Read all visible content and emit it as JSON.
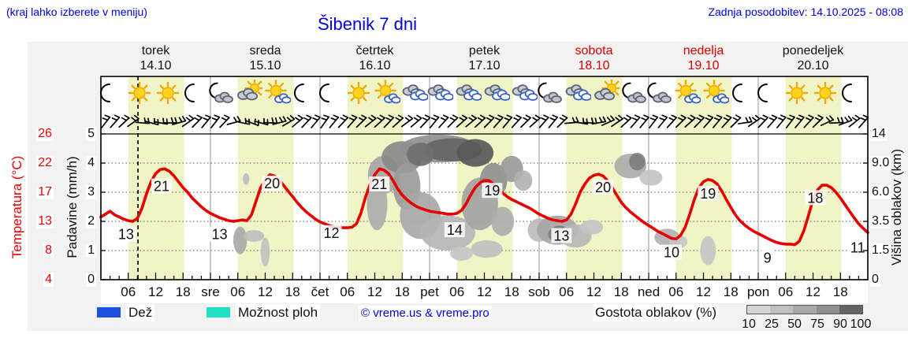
{
  "header": {
    "hint": "(kraj lahko izberete v meniju)",
    "updated": "Zadnja posodobitev: 14.10.2025 - 08:08",
    "title": "Šibenik 7 dni"
  },
  "colors": {
    "accent_blue": "#0000dd",
    "curve_red": "#e60000",
    "weekend_red": "#dd0000",
    "day_band_yellow": "#f0f4c6",
    "rain": "#1a51e0",
    "showers": "#20dfc5",
    "panel_gray": "#f2f2f2",
    "density_scale": [
      "#d6d6d6",
      "#c0c0c0",
      "#a9a9a9",
      "#8f8f8f",
      "#636363"
    ]
  },
  "days": [
    {
      "name": "torek",
      "date": "14.10",
      "color": "#111111",
      "icons": [
        "moon",
        "sun",
        "sun",
        "moon"
      ]
    },
    {
      "name": "sreda",
      "date": "15.10",
      "color": "#111111",
      "icons": [
        "moon-cloud",
        "cloud-sun",
        "sun-cloud",
        "moon"
      ]
    },
    {
      "name": "četrtek",
      "date": "16.10",
      "color": "#111111",
      "icons": [
        "moon",
        "sun",
        "sun-cloud",
        "cloud"
      ]
    },
    {
      "name": "petek",
      "date": "17.10",
      "color": "#111111",
      "icons": [
        "cloud",
        "cloud",
        "cloud",
        "cloud"
      ]
    },
    {
      "name": "sobota",
      "date": "18.10",
      "color": "#dd0000",
      "icons": [
        "moon-cloud",
        "cloud",
        "cloud-sun",
        "moon-cloud"
      ]
    },
    {
      "name": "nedelja",
      "date": "19.10",
      "color": "#dd0000",
      "icons": [
        "moon-cloud",
        "sun-cloud",
        "sun-cloud",
        "moon"
      ]
    },
    {
      "name": "ponedeljek",
      "date": "20.10",
      "color": "#111111",
      "icons": [
        "moon",
        "sun",
        "sun",
        "moon"
      ]
    }
  ],
  "axes": {
    "temp_label": "Temperatura (°C)",
    "temp_ticks": [
      "26",
      "22",
      "17",
      "13",
      "8",
      "4"
    ],
    "precip_label": "Padavine (mm/h)",
    "precip_ticks": [
      "5",
      "4",
      "3",
      "2",
      "1",
      "0"
    ],
    "cloud_label": "Višina oblakov (km)",
    "cloud_ticks": [
      "14",
      "9.0",
      "6.0",
      "3.5",
      "1.5",
      "0"
    ],
    "time_ticks": [
      "06",
      "12",
      "18"
    ],
    "day_abbr": [
      "sre",
      "čet",
      "pet",
      "sob",
      "ned",
      "pon"
    ]
  },
  "legend": {
    "rain": "Dež",
    "showers": "Možnost ploh",
    "credit": "© vreme.us & vreme.pro",
    "cloud_density": "Gostota oblakov (%)",
    "density_ticks": [
      "10",
      "25",
      "50",
      "75",
      "90",
      "100"
    ]
  },
  "chart_data": {
    "type": "line",
    "title": "Šibenik 7 dni",
    "x_axis": "hours from 14.10 00:00, total 168 h (7 days), ticks every 2 h, labels 06/12/18",
    "temp_axis_map": [
      [
        4,
        0
      ],
      [
        8,
        1
      ],
      [
        13,
        2
      ],
      [
        17,
        3
      ],
      [
        22,
        4
      ],
      [
        26,
        5
      ]
    ],
    "precip_axis_mmh": [
      0,
      1,
      2,
      3,
      4,
      5
    ],
    "cloud_height_axis_km": [
      0,
      1.5,
      3.5,
      6.0,
      9.0,
      14
    ],
    "now_hour": 8.13,
    "daylight_band_hours": [
      6.0,
      18.2
    ],
    "series": [
      {
        "name": "Temperatura (°C)",
        "color": "#e60000",
        "points": [
          [
            0,
            13.6
          ],
          [
            1,
            14.0
          ],
          [
            2,
            14.4
          ],
          [
            3,
            13.9
          ],
          [
            4,
            13.6
          ],
          [
            5,
            13.3
          ],
          [
            6,
            13.1
          ],
          [
            7,
            13.0
          ],
          [
            8,
            13.4
          ],
          [
            9,
            14.8
          ],
          [
            10,
            16.8
          ],
          [
            11,
            18.8
          ],
          [
            12,
            20.2
          ],
          [
            13,
            20.9
          ],
          [
            14,
            21.0
          ],
          [
            15,
            20.6
          ],
          [
            16,
            19.8
          ],
          [
            17,
            18.8
          ],
          [
            18,
            17.8
          ],
          [
            19,
            17.0
          ],
          [
            20,
            16.2
          ],
          [
            21,
            15.6
          ],
          [
            22,
            15.0
          ],
          [
            23,
            14.5
          ],
          [
            24,
            14.1
          ],
          [
            25,
            13.8
          ],
          [
            26,
            13.5
          ],
          [
            27,
            13.3
          ],
          [
            28,
            13.1
          ],
          [
            29,
            13.0
          ],
          [
            30,
            13.1
          ],
          [
            31,
            13.2
          ],
          [
            32,
            13.1
          ],
          [
            33,
            13.9
          ],
          [
            34,
            15.8
          ],
          [
            35,
            17.8
          ],
          [
            36,
            19.2
          ],
          [
            37,
            20.0
          ],
          [
            38,
            19.8
          ],
          [
            39,
            19.2
          ],
          [
            40,
            18.2
          ],
          [
            41,
            17.2
          ],
          [
            42,
            16.4
          ],
          [
            43,
            15.6
          ],
          [
            44,
            14.9
          ],
          [
            45,
            14.3
          ],
          [
            46,
            13.8
          ],
          [
            47,
            13.3
          ],
          [
            48,
            12.9
          ],
          [
            49,
            12.6
          ],
          [
            50,
            12.3
          ],
          [
            51,
            12.1
          ],
          [
            52,
            12.0
          ],
          [
            53,
            11.9
          ],
          [
            54,
            11.9
          ],
          [
            55,
            12.0
          ],
          [
            56,
            12.6
          ],
          [
            57,
            14.2
          ],
          [
            58,
            16.4
          ],
          [
            59,
            18.4
          ],
          [
            60,
            20.0
          ],
          [
            61,
            21.0
          ],
          [
            62,
            20.8
          ],
          [
            63,
            20.2
          ],
          [
            64,
            19.0
          ],
          [
            65,
            17.6
          ],
          [
            66,
            16.6
          ],
          [
            67,
            16.0
          ],
          [
            68,
            15.5
          ],
          [
            69,
            15.1
          ],
          [
            70,
            14.8
          ],
          [
            71,
            14.6
          ],
          [
            72,
            14.4
          ],
          [
            73,
            14.3
          ],
          [
            74,
            14.2
          ],
          [
            75,
            14.1
          ],
          [
            76,
            14.0
          ],
          [
            77,
            14.0
          ],
          [
            78,
            14.1
          ],
          [
            79,
            14.5
          ],
          [
            80,
            15.4
          ],
          [
            81,
            16.6
          ],
          [
            82,
            17.8
          ],
          [
            83,
            18.6
          ],
          [
            84,
            19.0
          ],
          [
            85,
            19.0
          ],
          [
            86,
            18.4
          ],
          [
            87,
            17.6
          ],
          [
            88,
            16.9
          ],
          [
            89,
            16.4
          ],
          [
            90,
            16.0
          ],
          [
            91,
            15.7
          ],
          [
            92,
            15.4
          ],
          [
            93,
            15.1
          ],
          [
            94,
            14.8
          ],
          [
            95,
            14.4
          ],
          [
            96,
            14.0
          ],
          [
            97,
            13.7
          ],
          [
            98,
            13.4
          ],
          [
            99,
            13.2
          ],
          [
            100,
            13.1
          ],
          [
            101,
            13.0
          ],
          [
            102,
            13.2
          ],
          [
            103,
            14.0
          ],
          [
            104,
            15.4
          ],
          [
            105,
            17.0
          ],
          [
            106,
            18.4
          ],
          [
            107,
            19.4
          ],
          [
            108,
            19.9
          ],
          [
            109,
            20.1
          ],
          [
            110,
            19.8
          ],
          [
            111,
            19.0
          ],
          [
            112,
            17.8
          ],
          [
            113,
            16.6
          ],
          [
            114,
            15.6
          ],
          [
            115,
            14.9
          ],
          [
            116,
            14.3
          ],
          [
            117,
            13.8
          ],
          [
            118,
            13.3
          ],
          [
            119,
            12.8
          ],
          [
            120,
            12.3
          ],
          [
            121,
            11.8
          ],
          [
            122,
            11.3
          ],
          [
            123,
            10.9
          ],
          [
            124,
            10.5
          ],
          [
            125,
            10.1
          ],
          [
            126,
            10.0
          ],
          [
            127,
            10.6
          ],
          [
            128,
            12.0
          ],
          [
            129,
            14.0
          ],
          [
            130,
            16.0
          ],
          [
            131,
            17.8
          ],
          [
            132,
            18.8
          ],
          [
            133,
            19.2
          ],
          [
            134,
            19.0
          ],
          [
            135,
            18.4
          ],
          [
            136,
            17.2
          ],
          [
            137,
            16.0
          ],
          [
            138,
            14.9
          ],
          [
            139,
            13.9
          ],
          [
            140,
            13.1
          ],
          [
            141,
            12.4
          ],
          [
            142,
            11.8
          ],
          [
            143,
            11.3
          ],
          [
            144,
            10.9
          ],
          [
            145,
            10.5
          ],
          [
            146,
            10.1
          ],
          [
            147,
            9.7
          ],
          [
            148,
            9.4
          ],
          [
            149,
            9.2
          ],
          [
            150,
            9.1
          ],
          [
            151,
            9.1
          ],
          [
            152,
            9.0
          ],
          [
            153,
            9.6
          ],
          [
            154,
            11.4
          ],
          [
            155,
            13.8
          ],
          [
            156,
            16.0
          ],
          [
            157,
            17.4
          ],
          [
            158,
            18.2
          ],
          [
            159,
            18.2
          ],
          [
            160,
            17.8
          ],
          [
            161,
            17.0
          ],
          [
            162,
            16.2
          ],
          [
            163,
            15.3
          ],
          [
            164,
            14.4
          ],
          [
            165,
            13.5
          ],
          [
            166,
            12.6
          ],
          [
            167,
            11.8
          ],
          [
            168,
            11.1
          ]
        ]
      }
    ],
    "point_labels": [
      {
        "t": 5.5,
        "s": 1.55,
        "text": "13"
      },
      {
        "t": 13.3,
        "s": 3.2,
        "text": "21"
      },
      {
        "t": 26.0,
        "s": 1.55,
        "text": "13"
      },
      {
        "t": 37.5,
        "s": 3.3,
        "text": "20"
      },
      {
        "t": 50.5,
        "s": 1.6,
        "text": "12"
      },
      {
        "t": 61.0,
        "s": 3.27,
        "text": "21"
      },
      {
        "t": 77.5,
        "s": 1.7,
        "text": "14"
      },
      {
        "t": 85.7,
        "s": 3.05,
        "text": "19"
      },
      {
        "t": 100.9,
        "s": 1.5,
        "text": "13"
      },
      {
        "t": 110.0,
        "s": 3.16,
        "text": "20"
      },
      {
        "t": 125.0,
        "s": 0.93,
        "text": "10"
      },
      {
        "t": 133.0,
        "s": 2.95,
        "text": "19"
      },
      {
        "t": 146.0,
        "s": 0.75,
        "text": "9"
      },
      {
        "t": 156.5,
        "s": 2.8,
        "text": "18"
      },
      {
        "t": 165.8,
        "s": 1.1,
        "text": "11"
      }
    ],
    "cloud_blobs": [
      {
        "t": 30.5,
        "a": 1.35,
        "w": 3.0,
        "h": 0.95,
        "c": "#a9a9a9"
      },
      {
        "t": 33.5,
        "a": 1.5,
        "w": 4.5,
        "h": 0.4,
        "c": "#bfbfbf"
      },
      {
        "t": 36.0,
        "a": 0.95,
        "w": 2.0,
        "h": 1.0,
        "c": "#c2c2c2"
      },
      {
        "t": 31.8,
        "a": 3.45,
        "w": 1.4,
        "h": 0.4,
        "c": "#bdbdbd"
      },
      {
        "t": 62.0,
        "a": 3.6,
        "w": 7.0,
        "h": 1.3,
        "c": "#a5a5a5"
      },
      {
        "t": 60.5,
        "a": 2.6,
        "w": 4.5,
        "h": 1.8,
        "c": "#acacac"
      },
      {
        "t": 66.0,
        "a": 4.2,
        "w": 9.0,
        "h": 1.1,
        "c": "#8a8a8a"
      },
      {
        "t": 74.0,
        "a": 4.5,
        "w": 17.0,
        "h": 0.95,
        "c": "#8f8f8f"
      },
      {
        "t": 77.0,
        "a": 4.45,
        "w": 13.0,
        "h": 0.8,
        "c": "#666666"
      },
      {
        "t": 82.0,
        "a": 4.35,
        "w": 8.0,
        "h": 0.95,
        "c": "#595959"
      },
      {
        "t": 70.0,
        "a": 4.3,
        "w": 6.0,
        "h": 0.8,
        "c": "#6f6f6f"
      },
      {
        "t": 67.0,
        "a": 3.2,
        "w": 6.0,
        "h": 1.6,
        "c": "#9b9b9b"
      },
      {
        "t": 70.0,
        "a": 2.2,
        "w": 9.0,
        "h": 1.6,
        "c": "#a8a8a8"
      },
      {
        "t": 76.0,
        "a": 1.6,
        "w": 12.0,
        "h": 1.2,
        "c": "#b5b5b5"
      },
      {
        "t": 83.0,
        "a": 2.6,
        "w": 8.0,
        "h": 1.8,
        "c": "#a3a3a3"
      },
      {
        "t": 86.0,
        "a": 3.4,
        "w": 6.0,
        "h": 1.2,
        "c": "#8f8f8f"
      },
      {
        "t": 90.0,
        "a": 3.8,
        "w": 5.0,
        "h": 0.9,
        "c": "#9b9b9b"
      },
      {
        "t": 92.5,
        "a": 3.4,
        "w": 4.0,
        "h": 0.7,
        "c": "#b2b2b2"
      },
      {
        "t": 84.5,
        "a": 1.05,
        "w": 7.0,
        "h": 0.6,
        "c": "#c0c0c0"
      },
      {
        "t": 79.0,
        "a": 0.9,
        "w": 5.0,
        "h": 0.5,
        "c": "#c6c6c6"
      },
      {
        "t": 88.0,
        "a": 2.0,
        "w": 5.0,
        "h": 1.0,
        "c": "#aeaeae"
      },
      {
        "t": 96.0,
        "a": 1.7,
        "w": 5.0,
        "h": 0.8,
        "c": "#bcbcbc"
      },
      {
        "t": 100.0,
        "a": 1.7,
        "w": 9.0,
        "h": 1.0,
        "c": "#a6a6a6"
      },
      {
        "t": 100.5,
        "a": 1.55,
        "w": 5.0,
        "h": 0.6,
        "c": "#7c7c7c"
      },
      {
        "t": 104.0,
        "a": 1.5,
        "w": 7.0,
        "h": 0.8,
        "c": "#b7b7b7"
      },
      {
        "t": 107.5,
        "a": 1.8,
        "w": 5.0,
        "h": 0.5,
        "c": "#c4c4c4"
      },
      {
        "t": 116.0,
        "a": 3.9,
        "w": 7.0,
        "h": 0.85,
        "c": "#ababab"
      },
      {
        "t": 117.5,
        "a": 4.05,
        "w": 3.6,
        "h": 0.6,
        "c": "#7f7f7f"
      },
      {
        "t": 120.5,
        "a": 3.5,
        "w": 5.0,
        "h": 0.55,
        "c": "#c3c3c3"
      },
      {
        "t": 124.0,
        "a": 1.45,
        "w": 5.5,
        "h": 0.6,
        "c": "#b1b1b1"
      },
      {
        "t": 126.5,
        "a": 1.3,
        "w": 4.0,
        "h": 0.45,
        "c": "#c6c6c6"
      },
      {
        "t": 133.0,
        "a": 1.0,
        "w": 3.4,
        "h": 1.0,
        "c": "#c6c6c6"
      }
    ],
    "wind_barb_angles": [
      8,
      12,
      18,
      25,
      65,
      75,
      70,
      60,
      45,
      25,
      15,
      10,
      8,
      14,
      45,
      72,
      82,
      76,
      62,
      46,
      30,
      20,
      14,
      10,
      6,
      10,
      14,
      12,
      16,
      22,
      18,
      14,
      18,
      24,
      20,
      14,
      10,
      13,
      16,
      19,
      21,
      18,
      15,
      12,
      10,
      13,
      16,
      19,
      12,
      10,
      16,
      55,
      70,
      64,
      50,
      36,
      26,
      18,
      12,
      10,
      8,
      10,
      13,
      16,
      19,
      15,
      12,
      10,
      13,
      16,
      52,
      26,
      14,
      12,
      10,
      8,
      10,
      13,
      16,
      36,
      58,
      40,
      22,
      12
    ]
  }
}
